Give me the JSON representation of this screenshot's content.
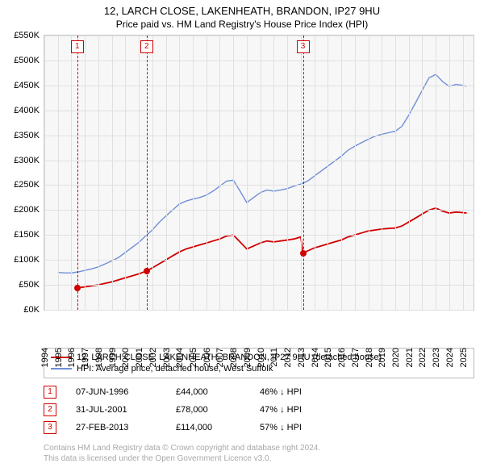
{
  "title": "12, LARCH CLOSE, LAKENHEATH, BRANDON, IP27 9HU",
  "subtitle": "Price paid vs. HM Land Registry's House Price Index (HPI)",
  "chart": {
    "type": "line",
    "background_color": "#f7f7f7",
    "grid_color": "#e0e0e0",
    "border_color": "#cccccc",
    "x": {
      "min": 1994,
      "max": 2025.8,
      "ticks": [
        1994,
        1995,
        1996,
        1997,
        1998,
        1999,
        2000,
        2001,
        2002,
        2003,
        2004,
        2005,
        2006,
        2007,
        2008,
        2009,
        2010,
        2011,
        2012,
        2013,
        2014,
        2015,
        2016,
        2017,
        2018,
        2019,
        2020,
        2021,
        2022,
        2023,
        2024,
        2025
      ],
      "tick_fontsize": 11,
      "tick_rotation_deg": -90
    },
    "y": {
      "min": 0,
      "max": 550,
      "ticks": [
        0,
        50,
        100,
        150,
        200,
        250,
        300,
        350,
        400,
        450,
        500,
        550
      ],
      "tick_prefix": "£",
      "tick_suffix": "K",
      "tick_fontsize": 11
    },
    "series": [
      {
        "name": "hpi",
        "label": "HPI: Average price, detached house, West Suffolk",
        "color": "#6f8fd6",
        "line_width": 1.4,
        "points": [
          [
            1995.0,
            75
          ],
          [
            1995.5,
            74
          ],
          [
            1996.0,
            74
          ],
          [
            1996.5,
            76
          ],
          [
            1997.0,
            79
          ],
          [
            1997.5,
            82
          ],
          [
            1998.0,
            86
          ],
          [
            1998.5,
            92
          ],
          [
            1999.0,
            98
          ],
          [
            1999.5,
            105
          ],
          [
            2000.0,
            115
          ],
          [
            2000.5,
            125
          ],
          [
            2001.0,
            135
          ],
          [
            2001.5,
            148
          ],
          [
            2002.0,
            160
          ],
          [
            2002.5,
            175
          ],
          [
            2003.0,
            188
          ],
          [
            2003.5,
            200
          ],
          [
            2004.0,
            212
          ],
          [
            2004.5,
            218
          ],
          [
            2005.0,
            222
          ],
          [
            2005.5,
            225
          ],
          [
            2006.0,
            230
          ],
          [
            2006.5,
            238
          ],
          [
            2007.0,
            248
          ],
          [
            2007.5,
            258
          ],
          [
            2008.0,
            260
          ],
          [
            2008.5,
            238
          ],
          [
            2009.0,
            215
          ],
          [
            2009.5,
            225
          ],
          [
            2010.0,
            235
          ],
          [
            2010.5,
            240
          ],
          [
            2011.0,
            238
          ],
          [
            2011.5,
            240
          ],
          [
            2012.0,
            243
          ],
          [
            2012.5,
            248
          ],
          [
            2013.0,
            252
          ],
          [
            2013.5,
            258
          ],
          [
            2014.0,
            268
          ],
          [
            2014.5,
            278
          ],
          [
            2015.0,
            288
          ],
          [
            2015.5,
            298
          ],
          [
            2016.0,
            308
          ],
          [
            2016.5,
            320
          ],
          [
            2017.0,
            328
          ],
          [
            2017.5,
            335
          ],
          [
            2018.0,
            342
          ],
          [
            2018.5,
            348
          ],
          [
            2019.0,
            352
          ],
          [
            2019.5,
            355
          ],
          [
            2020.0,
            358
          ],
          [
            2020.5,
            368
          ],
          [
            2021.0,
            390
          ],
          [
            2021.5,
            415
          ],
          [
            2022.0,
            440
          ],
          [
            2022.5,
            465
          ],
          [
            2023.0,
            472
          ],
          [
            2023.5,
            458
          ],
          [
            2024.0,
            448
          ],
          [
            2024.5,
            452
          ],
          [
            2025.0,
            450
          ],
          [
            2025.3,
            448
          ]
        ]
      },
      {
        "name": "property",
        "label": "12, LARCH CLOSE, LAKENHEATH, BRANDON, IP27 9HU (detached house)",
        "color": "#d00000",
        "line_width": 1.8,
        "points": [
          [
            1996.44,
            44
          ],
          [
            1997.0,
            46
          ],
          [
            1998.0,
            50
          ],
          [
            1999.0,
            56
          ],
          [
            2000.0,
            64
          ],
          [
            2001.0,
            72
          ],
          [
            2001.58,
            78
          ],
          [
            2002.0,
            84
          ],
          [
            2002.5,
            92
          ],
          [
            2003.0,
            100
          ],
          [
            2003.5,
            108
          ],
          [
            2004.0,
            116
          ],
          [
            2004.5,
            122
          ],
          [
            2005.0,
            126
          ],
          [
            2005.5,
            130
          ],
          [
            2006.0,
            134
          ],
          [
            2006.5,
            138
          ],
          [
            2007.0,
            142
          ],
          [
            2007.5,
            148
          ],
          [
            2008.0,
            150
          ],
          [
            2008.5,
            136
          ],
          [
            2009.0,
            122
          ],
          [
            2009.5,
            128
          ],
          [
            2010.0,
            134
          ],
          [
            2010.5,
            138
          ],
          [
            2011.0,
            136
          ],
          [
            2011.5,
            138
          ],
          [
            2012.0,
            140
          ],
          [
            2012.5,
            142
          ],
          [
            2013.0,
            146
          ],
          [
            2013.16,
            114
          ],
          [
            2013.5,
            118
          ],
          [
            2014.0,
            124
          ],
          [
            2014.5,
            128
          ],
          [
            2015.0,
            132
          ],
          [
            2015.5,
            136
          ],
          [
            2016.0,
            140
          ],
          [
            2016.5,
            146
          ],
          [
            2017.0,
            150
          ],
          [
            2017.5,
            154
          ],
          [
            2018.0,
            158
          ],
          [
            2018.5,
            160
          ],
          [
            2019.0,
            162
          ],
          [
            2019.5,
            163
          ],
          [
            2020.0,
            164
          ],
          [
            2020.5,
            168
          ],
          [
            2021.0,
            176
          ],
          [
            2021.5,
            184
          ],
          [
            2022.0,
            192
          ],
          [
            2022.5,
            200
          ],
          [
            2023.0,
            204
          ],
          [
            2023.5,
            198
          ],
          [
            2024.0,
            194
          ],
          [
            2024.5,
            196
          ],
          [
            2025.0,
            195
          ],
          [
            2025.3,
            194
          ]
        ]
      }
    ],
    "sale_markers": [
      {
        "n": "1",
        "year": 1996.44,
        "price_k": 44
      },
      {
        "n": "2",
        "year": 2001.58,
        "price_k": 78
      },
      {
        "n": "3",
        "year": 2013.16,
        "price_k": 114
      }
    ],
    "marker_color": "#d00000"
  },
  "legend": {
    "items": [
      {
        "color": "#d00000",
        "label": "12, LARCH CLOSE, LAKENHEATH, BRANDON, IP27 9HU (detached house)"
      },
      {
        "color": "#6f8fd6",
        "label": "HPI: Average price, detached house, West Suffolk"
      }
    ]
  },
  "events": [
    {
      "n": "1",
      "date": "07-JUN-1996",
      "price": "£44,000",
      "diff": "46% ↓ HPI"
    },
    {
      "n": "2",
      "date": "31-JUL-2001",
      "price": "£78,000",
      "diff": "47% ↓ HPI"
    },
    {
      "n": "3",
      "date": "27-FEB-2013",
      "price": "£114,000",
      "diff": "57% ↓ HPI"
    }
  ],
  "footer": {
    "line1": "Contains HM Land Registry data © Crown copyright and database right 2024.",
    "line2": "This data is licensed under the Open Government Licence v3.0."
  }
}
